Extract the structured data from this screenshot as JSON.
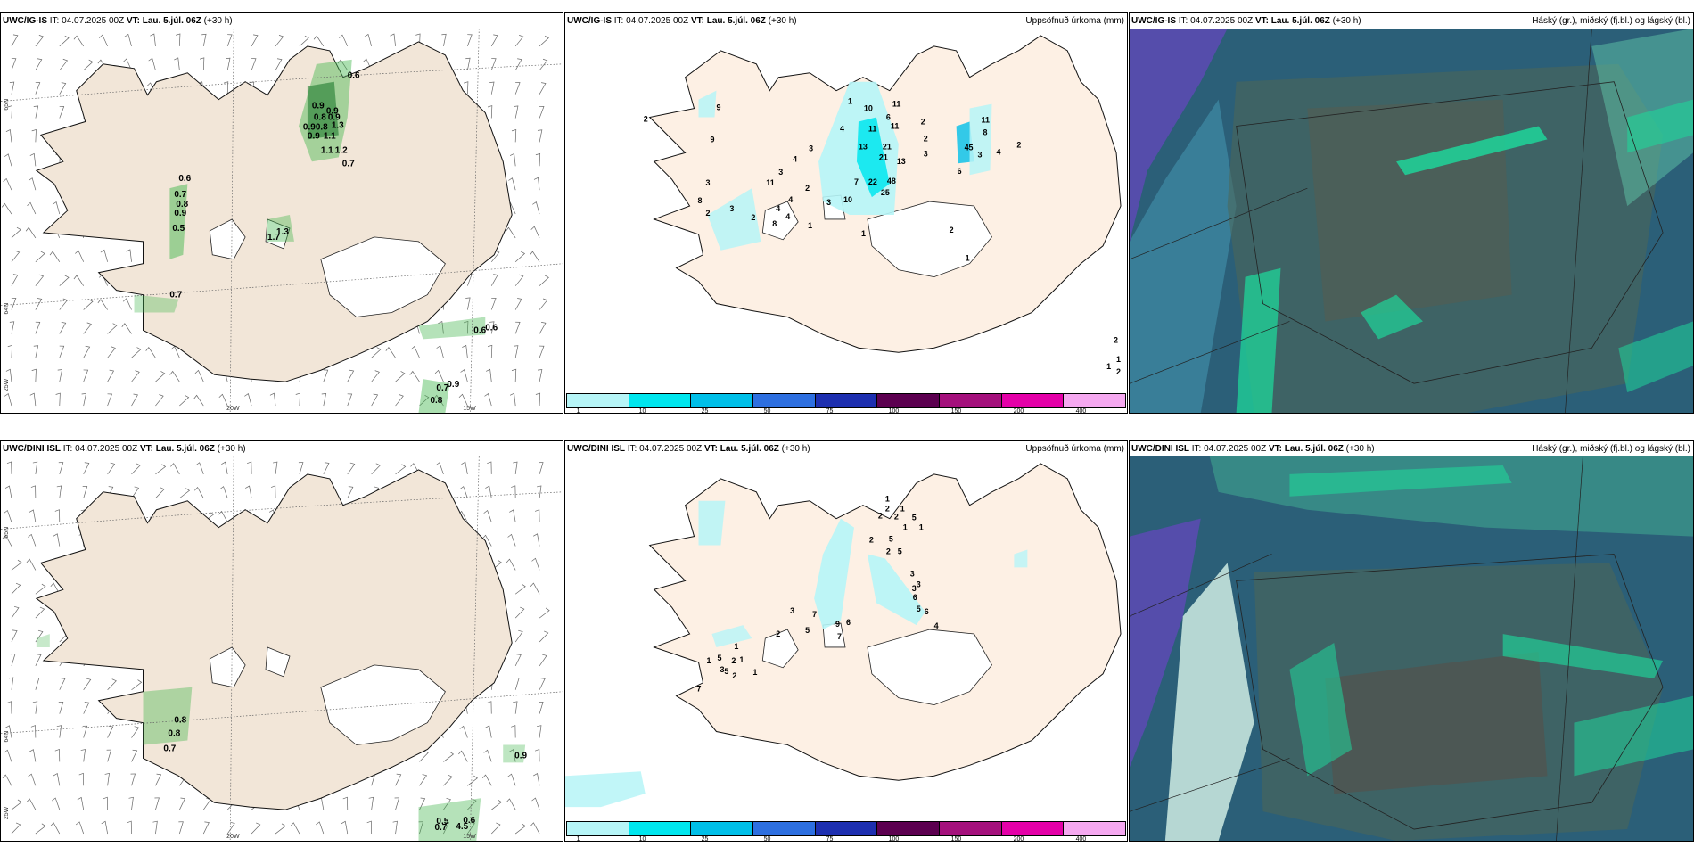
{
  "panels": {
    "wind_top": {
      "model": "UWC/IG-IS",
      "it": "IT: 04.07.2025 00Z",
      "vt_label": "VT:",
      "vt_value": "Lau. 5.júl. 06Z",
      "lead": "(+30 h)",
      "labels": [
        "0.6",
        "0.9",
        "0.9",
        "0.8",
        "0.9",
        "0.9",
        "0.8",
        "0.9",
        "1.1",
        "1.3",
        "1.1",
        "1.2",
        "0.7",
        "0.6",
        "0.7",
        "0.8",
        "0.9",
        "0.5",
        "1.7",
        "1.3",
        "0.7",
        "0.6",
        "0.6",
        "0.7",
        "0.9",
        "0.8"
      ]
    },
    "precip_top": {
      "model": "UWC/IG-IS",
      "it": "IT: 04.07.2025 00Z",
      "vt_label": "VT:",
      "vt_value": "Lau. 5.júl. 06Z",
      "lead": "(+30 h)",
      "right_title": "Uppsöfnuð úrkoma (mm)",
      "labels": [
        "1",
        "10",
        "11",
        "6",
        "11",
        "4",
        "11",
        "13",
        "21",
        "21",
        "13",
        "7",
        "22",
        "48",
        "25",
        "9",
        "2",
        "2",
        "2",
        "3",
        "11",
        "8",
        "45",
        "3",
        "6",
        "4",
        "2",
        "9",
        "3",
        "8",
        "2",
        "3",
        "4",
        "4",
        "4",
        "3",
        "11",
        "2",
        "2",
        "3",
        "10",
        "3",
        "4",
        "8",
        "1",
        "1",
        "2",
        "1",
        "2",
        "2",
        "1",
        "1"
      ]
    },
    "cloud_top": {
      "model": "UWC/IG-IS",
      "it": "IT: 04.07.2025 00Z",
      "vt_label": "VT:",
      "vt_value": "Lau. 5.júl. 06Z",
      "lead": "(+30 h)",
      "right_title": "Háský (gr.), miðský (fj.bl.) og lágský (bl.)"
    },
    "wind_bottom": {
      "model": "UWC/DINI ISL",
      "it": "IT: 04.07.2025 00Z",
      "vt_label": "VT:",
      "vt_value": "Lau. 5.júl. 06Z",
      "lead": "(+30 h)",
      "labels": [
        "0.8",
        "0.8",
        "0.7",
        "0.9",
        "0.7",
        "0.5",
        "0.6",
        "4.5"
      ]
    },
    "precip_bottom": {
      "model": "UWC/DINI ISL",
      "it": "IT: 04.07.2025 00Z",
      "vt_label": "VT:",
      "vt_value": "Lau. 5.júl. 06Z",
      "lead": "(+30 h)",
      "right_title": "Uppsöfnuð úrkoma (mm)",
      "labels": [
        "1",
        "2",
        "1",
        "2",
        "5",
        "1",
        "1",
        "2",
        "2",
        "5",
        "2",
        "5",
        "3",
        "3",
        "3",
        "6",
        "5",
        "6",
        "4",
        "7",
        "9",
        "6",
        "7",
        "5",
        "3",
        "2",
        "5",
        "3",
        "5",
        "1",
        "1",
        "2",
        "2",
        "1",
        "1",
        "7"
      ]
    },
    "cloud_bottom": {
      "model": "UWC/DINI ISL",
      "it": "IT: 04.07.2025 00Z",
      "vt_label": "VT:",
      "vt_value": "Lau. 5.júl. 06Z",
      "lead": "(+30 h)",
      "right_title": "Háský (gr.), miðský (fj.bl.) og lágský (bl.)"
    }
  },
  "grid_labels": {
    "lat65": "65N",
    "lat64": "64N",
    "lon25": "25W",
    "lon20": "20W",
    "lon15": "15W"
  },
  "precip_scale": {
    "ticks": [
      "1",
      "10",
      "25",
      "50",
      "75",
      "100",
      "150",
      "200",
      "400"
    ],
    "colors": [
      "#b6f5f7",
      "#00e6ee",
      "#00bfe8",
      "#2d6fe0",
      "#1d2fb0",
      "#5c0050",
      "#a4107c",
      "#e400a8",
      "#f5a8f0"
    ]
  },
  "colors": {
    "land": "#f2e6d8",
    "land_precip": "#fdf0e4",
    "glacier": "#ffffff",
    "wind_precip": "#2e9e3e",
    "cloud_sea": "#2b5f78",
    "cloud_high": "#5a4bb0",
    "cloud_low": "#1fd59a"
  }
}
